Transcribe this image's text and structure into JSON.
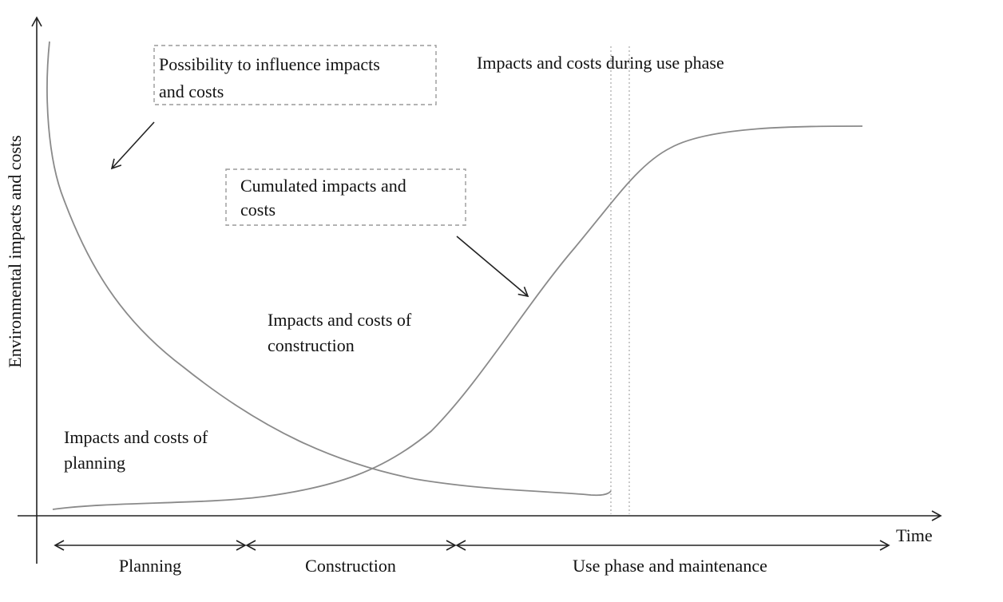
{
  "diagram": {
    "y_axis_label": "Environmental impacts and costs",
    "x_axis_label": "Time",
    "annotations": {
      "influence": [
        "Possibility to influence impacts",
        "and costs"
      ],
      "cumulated": [
        "Cumulated impacts and",
        "costs"
      ],
      "use_phase": "Impacts and costs during use phase",
      "construction": [
        "Impacts and costs of",
        "construction"
      ],
      "planning": [
        "Impacts and costs of",
        "planning"
      ]
    },
    "phases": [
      {
        "label": "Planning"
      },
      {
        "label": "Construction"
      },
      {
        "label": "Use phase and maintenance"
      }
    ]
  }
}
